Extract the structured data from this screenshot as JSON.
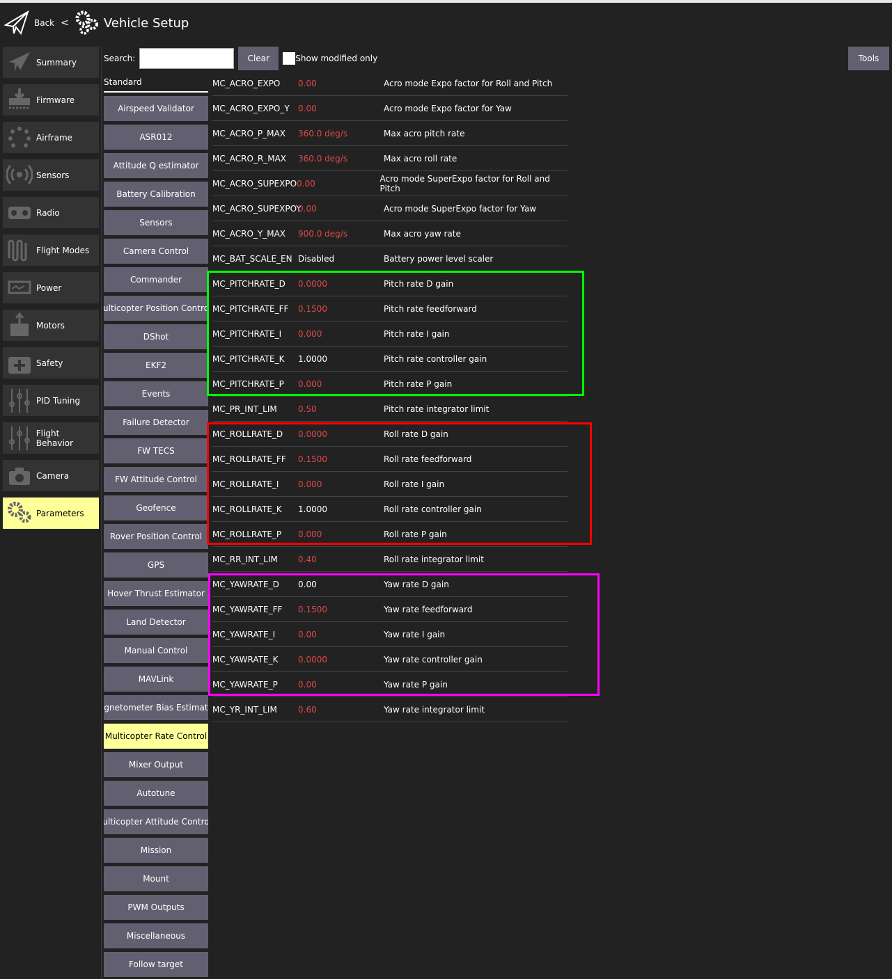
{
  "header": {
    "back": "Back",
    "separator": "<",
    "title": "Vehicle Setup"
  },
  "sidebar": {
    "items": [
      {
        "label": "Summary",
        "icon": "paper-plane-icon"
      },
      {
        "label": "Firmware",
        "icon": "download-icon"
      },
      {
        "label": "Airframe",
        "icon": "airframe-icon"
      },
      {
        "label": "Sensors",
        "icon": "sensors-icon"
      },
      {
        "label": "Radio",
        "icon": "radio-icon"
      },
      {
        "label": "Flight Modes",
        "icon": "flight-modes-icon"
      },
      {
        "label": "Power",
        "icon": "power-icon"
      },
      {
        "label": "Motors",
        "icon": "motors-icon"
      },
      {
        "label": "Safety",
        "icon": "safety-icon"
      },
      {
        "label": "PID Tuning",
        "icon": "sliders-icon"
      },
      {
        "label": "Flight Behavior",
        "icon": "sliders-icon"
      },
      {
        "label": "Camera",
        "icon": "camera-icon"
      },
      {
        "label": "Parameters",
        "icon": "gears-icon",
        "active": true
      }
    ]
  },
  "toolbar": {
    "search_label": "Search:",
    "search_value": "",
    "clear": "Clear",
    "show_modified": "Show modified only",
    "show_modified_checked": false,
    "tools": "Tools"
  },
  "groups": {
    "standard": "Standard",
    "active": "Multicopter Rate Control",
    "items": [
      "Airspeed Validator",
      "ASR012",
      "Attitude Q estimator",
      "Battery Calibration",
      "Sensors",
      "Camera Control",
      "Commander",
      "ulticopter Position Contro",
      "DShot",
      "EKF2",
      "Events",
      "Failure Detector",
      "FW TECS",
      "FW Attitude Control",
      "Geofence",
      "Rover Position Control",
      "GPS",
      "Hover Thrust Estimator",
      "Land Detector",
      "Manual Control",
      "MAVLink",
      "agnetometer Bias Estimato",
      "Multicopter Rate Control",
      "Mixer Output",
      "Autotune",
      "ulticopter Attitude Contro",
      "Mission",
      "Mount",
      "PWM Outputs",
      "Miscellaneous",
      "Follow target"
    ]
  },
  "params": [
    {
      "name": "MC_ACRO_EXPO",
      "value": "0.00",
      "desc": "Acro mode Expo factor for Roll and Pitch",
      "modified": true
    },
    {
      "name": "MC_ACRO_EXPO_Y",
      "value": "0.00",
      "desc": "Acro mode Expo factor for Yaw",
      "modified": true
    },
    {
      "name": "MC_ACRO_P_MAX",
      "value": "360.0 deg/s",
      "desc": "Max acro pitch rate",
      "modified": true
    },
    {
      "name": "MC_ACRO_R_MAX",
      "value": "360.0 deg/s",
      "desc": "Max acro roll rate",
      "modified": true
    },
    {
      "name": "MC_ACRO_SUPEXPO",
      "value": "0.00",
      "desc": "Acro mode SuperExpo factor for Roll and Pitch",
      "modified": true
    },
    {
      "name": "MC_ACRO_SUPEXPOY",
      "value": "0.00",
      "desc": "Acro mode SuperExpo factor for Yaw",
      "modified": true
    },
    {
      "name": "MC_ACRO_Y_MAX",
      "value": "900.0 deg/s",
      "desc": "Max acro yaw rate",
      "modified": true
    },
    {
      "name": "MC_BAT_SCALE_EN",
      "value": "Disabled",
      "desc": "Battery power level scaler",
      "modified": false
    },
    {
      "name": "MC_PITCHRATE_D",
      "value": "0.0000",
      "desc": "Pitch rate D gain",
      "modified": true
    },
    {
      "name": "MC_PITCHRATE_FF",
      "value": "0.1500",
      "desc": "Pitch rate feedforward",
      "modified": true
    },
    {
      "name": "MC_PITCHRATE_I",
      "value": "0.000",
      "desc": "Pitch rate I gain",
      "modified": true
    },
    {
      "name": "MC_PITCHRATE_K",
      "value": "1.0000",
      "desc": "Pitch rate controller gain",
      "modified": false
    },
    {
      "name": "MC_PITCHRATE_P",
      "value": "0.000",
      "desc": "Pitch rate P gain",
      "modified": true
    },
    {
      "name": "MC_PR_INT_LIM",
      "value": "0.50",
      "desc": "Pitch rate integrator limit",
      "modified": true
    },
    {
      "name": "MC_ROLLRATE_D",
      "value": "0.0000",
      "desc": "Roll rate D gain",
      "modified": true
    },
    {
      "name": "MC_ROLLRATE_FF",
      "value": "0.1500",
      "desc": "Roll rate feedforward",
      "modified": true
    },
    {
      "name": "MC_ROLLRATE_I",
      "value": "0.000",
      "desc": "Roll rate I gain",
      "modified": true
    },
    {
      "name": "MC_ROLLRATE_K",
      "value": "1.0000",
      "desc": "Roll rate controller gain",
      "modified": false
    },
    {
      "name": "MC_ROLLRATE_P",
      "value": "0.000",
      "desc": "Roll rate P gain",
      "modified": true
    },
    {
      "name": "MC_RR_INT_LIM",
      "value": "0.40",
      "desc": "Roll rate integrator limit",
      "modified": true
    },
    {
      "name": "MC_YAWRATE_D",
      "value": "0.00",
      "desc": "Yaw rate D gain",
      "modified": false
    },
    {
      "name": "MC_YAWRATE_FF",
      "value": "0.1500",
      "desc": "Yaw rate feedforward",
      "modified": true
    },
    {
      "name": "MC_YAWRATE_I",
      "value": "0.00",
      "desc": "Yaw rate I gain",
      "modified": true
    },
    {
      "name": "MC_YAWRATE_K",
      "value": "0.0000",
      "desc": "Yaw rate controller gain",
      "modified": true
    },
    {
      "name": "MC_YAWRATE_P",
      "value": "0.00",
      "desc": "Yaw rate P gain",
      "modified": true
    },
    {
      "name": "MC_YR_INT_LIM",
      "value": "0.60",
      "desc": "Yaw rate integrator limit",
      "modified": true
    }
  ],
  "highlights": [
    {
      "group": "pitch-rate",
      "color": "#00ff00"
    },
    {
      "group": "roll-rate",
      "color": "#ff0000"
    },
    {
      "group": "yaw-rate",
      "color": "#ff00ff"
    }
  ],
  "colors": {
    "modified_value": "#e04848",
    "selected": "#ffff99",
    "button": "#626070"
  }
}
